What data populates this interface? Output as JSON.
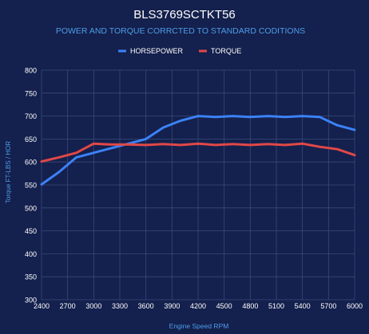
{
  "chart_data": {
    "type": "line",
    "title": "BLS3769SCTKT56",
    "subtitle": "POWER AND TORQUE CORRCTED TO STANDARD CODITIONS",
    "xlabel": "Engine Speed RPM",
    "ylabel": "Torque FT-LBS / HOR",
    "legend_position": "top",
    "grid": true,
    "xlim": [
      2400,
      6000
    ],
    "ylim": [
      300,
      800
    ],
    "x_ticks": [
      "2400",
      "2700",
      "3000",
      "3300",
      "3600",
      "3900",
      "4200",
      "4500",
      "4800",
      "5100",
      "5400",
      "5700",
      "6000"
    ],
    "y_ticks": [
      "300",
      "350",
      "400",
      "450",
      "500",
      "550",
      "600",
      "650",
      "700",
      "750",
      "800"
    ],
    "x": [
      2400,
      2600,
      2800,
      3000,
      3200,
      3400,
      3600,
      3800,
      4000,
      4200,
      4400,
      4600,
      4800,
      5000,
      5200,
      5400,
      5600,
      5800,
      6000
    ],
    "series": [
      {
        "name": "HORSEPOWER",
        "color": "#3b82f6",
        "values": [
          551,
          578,
          610,
          620,
          630,
          640,
          650,
          675,
          690,
          700,
          698,
          700,
          698,
          700,
          698,
          700,
          698,
          680,
          670
        ]
      },
      {
        "name": "TORQUE",
        "color": "#e04848",
        "values": [
          601,
          610,
          620,
          640,
          638,
          638,
          637,
          639,
          637,
          640,
          637,
          639,
          637,
          639,
          637,
          640,
          633,
          628,
          615
        ]
      }
    ],
    "colors": {
      "background": "#14204d",
      "title": "#ffffff",
      "subtitle": "#4d9de8",
      "axis_label": "#4d9de8",
      "tick_label": "#ffffff",
      "legend_text": "#ffffff",
      "grid": "#3a4a78"
    }
  }
}
